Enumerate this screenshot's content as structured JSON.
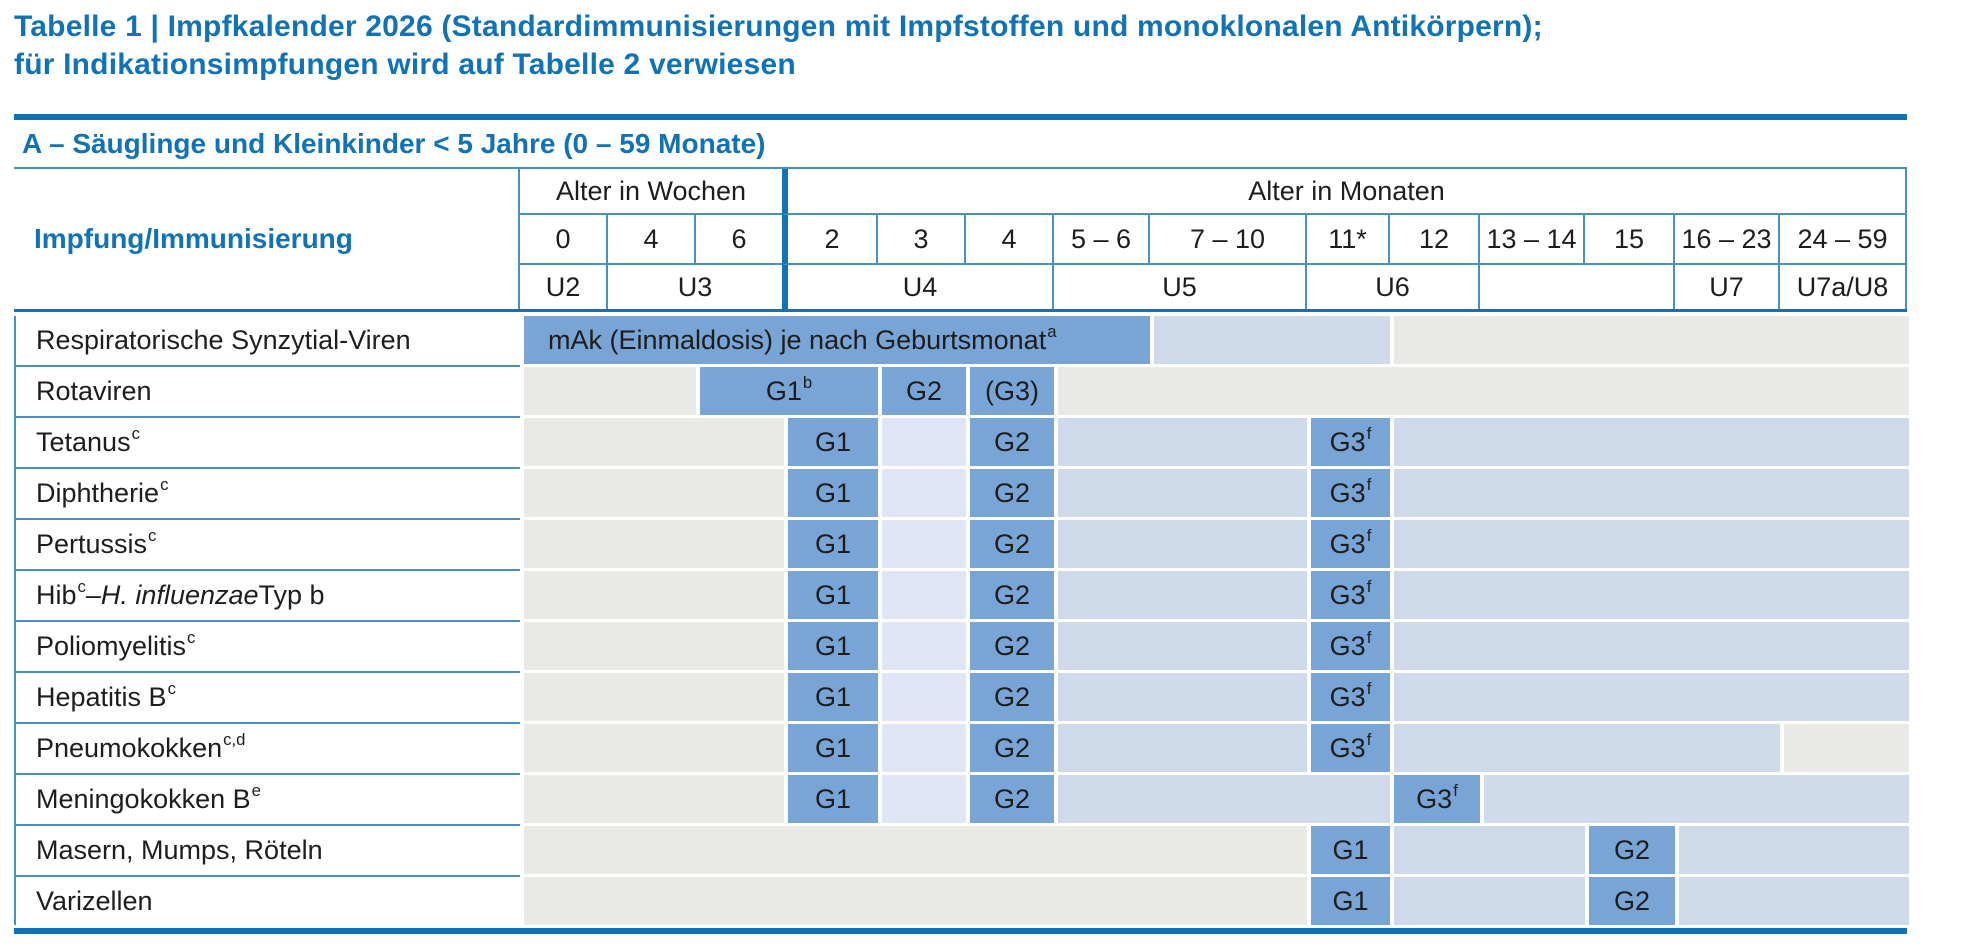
{
  "title": {
    "line1": "Tabelle 1 | Impfkalender 2026 (Standardimmunisierungen mit Impfstoffen und monoklonalen Antikörpern);",
    "line2": "für Indikationsimpfungen wird auf Tabelle 2 verwiesen"
  },
  "section": {
    "label": "A – Säuglinge und Kleinkinder < 5 Jahre (0 – 59 Monate)"
  },
  "header": {
    "impfung_label": "Impfung/Immunisierung",
    "weeks_label": "Alter in Wochen",
    "months_label": "Alter in Monaten",
    "week_columns": [
      "0",
      "4",
      "6"
    ],
    "month_columns": [
      "2",
      "3",
      "4",
      "5 – 6",
      "7 – 10",
      "11*",
      "12",
      "13 – 14",
      "15",
      "16 – 23",
      "24 – 59"
    ],
    "u_row": [
      "U2",
      "U3",
      "U4",
      "U5",
      "U6",
      "",
      "U7",
      "U7a/U8"
    ]
  },
  "colors": {
    "accent_blue": "#1173b6",
    "grid_line_blue": "#4a8ec2",
    "dose_cell_blue": "#79a4d6",
    "range_light_lavender": "#dfe5f4",
    "range_periwinkle": "#cfdaeb",
    "inactive_gray": "#e9e9e6"
  },
  "schedule": {
    "rows": [
      {
        "label_parts": [
          {
            "t": "Respiratorische Synzytial-Viren"
          }
        ],
        "cells": [
          {
            "start": "w0",
            "end": "m7_10",
            "color": "blue",
            "align": "left",
            "parts": [
              {
                "t": "mAk (Einmaldosis) je nach Geburtsmonat"
              },
              {
                "sup": "a"
              }
            ]
          },
          {
            "start": "m7_10",
            "end": "m12",
            "color": "periwinkle"
          },
          {
            "start": "m12",
            "end": "end",
            "color": "gray"
          }
        ]
      },
      {
        "label_parts": [
          {
            "t": "Rotaviren"
          }
        ],
        "cells": [
          {
            "start": "w0",
            "end": "w6",
            "color": "gray"
          },
          {
            "start": "w6",
            "end": "m3",
            "color": "blue",
            "parts": [
              {
                "t": "G1"
              },
              {
                "sup": "b"
              }
            ]
          },
          {
            "start": "m3",
            "end": "m4",
            "color": "blue",
            "parts": [
              {
                "t": "G2"
              }
            ]
          },
          {
            "start": "m4",
            "end": "m5_6",
            "color": "blue",
            "parts": [
              {
                "t": "(G3)"
              }
            ]
          },
          {
            "start": "m5_6",
            "end": "end",
            "color": "gray"
          }
        ]
      },
      {
        "label_parts": [
          {
            "t": "Tetanus"
          },
          {
            "sup": "c"
          }
        ],
        "cells": [
          {
            "start": "w0",
            "end": "m2",
            "color": "gray"
          },
          {
            "start": "m2",
            "end": "m3",
            "color": "blue",
            "parts": [
              {
                "t": "G1"
              }
            ]
          },
          {
            "start": "m3",
            "end": "m4",
            "color": "lavender"
          },
          {
            "start": "m4",
            "end": "m5_6",
            "color": "blue",
            "parts": [
              {
                "t": "G2"
              }
            ]
          },
          {
            "start": "m5_6",
            "end": "m11",
            "color": "periwinkle"
          },
          {
            "start": "m11",
            "end": "m12",
            "color": "blue",
            "parts": [
              {
                "t": "G3"
              },
              {
                "sup": "f"
              }
            ]
          },
          {
            "start": "m12",
            "end": "end",
            "color": "periwinkle"
          }
        ]
      },
      {
        "label_parts": [
          {
            "t": "Diphtherie"
          },
          {
            "sup": "c"
          }
        ],
        "cells": [
          {
            "start": "w0",
            "end": "m2",
            "color": "gray"
          },
          {
            "start": "m2",
            "end": "m3",
            "color": "blue",
            "parts": [
              {
                "t": "G1"
              }
            ]
          },
          {
            "start": "m3",
            "end": "m4",
            "color": "lavender"
          },
          {
            "start": "m4",
            "end": "m5_6",
            "color": "blue",
            "parts": [
              {
                "t": "G2"
              }
            ]
          },
          {
            "start": "m5_6",
            "end": "m11",
            "color": "periwinkle"
          },
          {
            "start": "m11",
            "end": "m12",
            "color": "blue",
            "parts": [
              {
                "t": "G3"
              },
              {
                "sup": "f"
              }
            ]
          },
          {
            "start": "m12",
            "end": "end",
            "color": "periwinkle"
          }
        ]
      },
      {
        "label_parts": [
          {
            "t": "Pertussis"
          },
          {
            "sup": "c"
          }
        ],
        "cells": [
          {
            "start": "w0",
            "end": "m2",
            "color": "gray"
          },
          {
            "start": "m2",
            "end": "m3",
            "color": "blue",
            "parts": [
              {
                "t": "G1"
              }
            ]
          },
          {
            "start": "m3",
            "end": "m4",
            "color": "lavender"
          },
          {
            "start": "m4",
            "end": "m5_6",
            "color": "blue",
            "parts": [
              {
                "t": "G2"
              }
            ]
          },
          {
            "start": "m5_6",
            "end": "m11",
            "color": "periwinkle"
          },
          {
            "start": "m11",
            "end": "m12",
            "color": "blue",
            "parts": [
              {
                "t": "G3"
              },
              {
                "sup": "f"
              }
            ]
          },
          {
            "start": "m12",
            "end": "end",
            "color": "periwinkle"
          }
        ]
      },
      {
        "label_parts": [
          {
            "t": "Hib"
          },
          {
            "sup": "c"
          },
          {
            "t": " – "
          },
          {
            "t": "H. influenzae",
            "italic": true
          },
          {
            "t": " Typ b"
          }
        ],
        "cells": [
          {
            "start": "w0",
            "end": "m2",
            "color": "gray"
          },
          {
            "start": "m2",
            "end": "m3",
            "color": "blue",
            "parts": [
              {
                "t": "G1"
              }
            ]
          },
          {
            "start": "m3",
            "end": "m4",
            "color": "lavender"
          },
          {
            "start": "m4",
            "end": "m5_6",
            "color": "blue",
            "parts": [
              {
                "t": "G2"
              }
            ]
          },
          {
            "start": "m5_6",
            "end": "m11",
            "color": "periwinkle"
          },
          {
            "start": "m11",
            "end": "m12",
            "color": "blue",
            "parts": [
              {
                "t": "G3"
              },
              {
                "sup": "f"
              }
            ]
          },
          {
            "start": "m12",
            "end": "end",
            "color": "periwinkle"
          }
        ]
      },
      {
        "label_parts": [
          {
            "t": "Poliomyelitis"
          },
          {
            "sup": "c"
          }
        ],
        "cells": [
          {
            "start": "w0",
            "end": "m2",
            "color": "gray"
          },
          {
            "start": "m2",
            "end": "m3",
            "color": "blue",
            "parts": [
              {
                "t": "G1"
              }
            ]
          },
          {
            "start": "m3",
            "end": "m4",
            "color": "lavender"
          },
          {
            "start": "m4",
            "end": "m5_6",
            "color": "blue",
            "parts": [
              {
                "t": "G2"
              }
            ]
          },
          {
            "start": "m5_6",
            "end": "m11",
            "color": "periwinkle"
          },
          {
            "start": "m11",
            "end": "m12",
            "color": "blue",
            "parts": [
              {
                "t": "G3"
              },
              {
                "sup": "f"
              }
            ]
          },
          {
            "start": "m12",
            "end": "end",
            "color": "periwinkle"
          }
        ]
      },
      {
        "label_parts": [
          {
            "t": "Hepatitis B"
          },
          {
            "sup": "c"
          }
        ],
        "cells": [
          {
            "start": "w0",
            "end": "m2",
            "color": "gray"
          },
          {
            "start": "m2",
            "end": "m3",
            "color": "blue",
            "parts": [
              {
                "t": "G1"
              }
            ]
          },
          {
            "start": "m3",
            "end": "m4",
            "color": "lavender"
          },
          {
            "start": "m4",
            "end": "m5_6",
            "color": "blue",
            "parts": [
              {
                "t": "G2"
              }
            ]
          },
          {
            "start": "m5_6",
            "end": "m11",
            "color": "periwinkle"
          },
          {
            "start": "m11",
            "end": "m12",
            "color": "blue",
            "parts": [
              {
                "t": "G3"
              },
              {
                "sup": "f"
              }
            ]
          },
          {
            "start": "m12",
            "end": "end",
            "color": "periwinkle"
          }
        ]
      },
      {
        "label_parts": [
          {
            "t": "Pneumokokken"
          },
          {
            "sup": "c,d"
          }
        ],
        "cells": [
          {
            "start": "w0",
            "end": "m2",
            "color": "gray"
          },
          {
            "start": "m2",
            "end": "m3",
            "color": "blue",
            "parts": [
              {
                "t": "G1"
              }
            ]
          },
          {
            "start": "m3",
            "end": "m4",
            "color": "lavender"
          },
          {
            "start": "m4",
            "end": "m5_6",
            "color": "blue",
            "parts": [
              {
                "t": "G2"
              }
            ]
          },
          {
            "start": "m5_6",
            "end": "m11",
            "color": "periwinkle"
          },
          {
            "start": "m11",
            "end": "m12",
            "color": "blue",
            "parts": [
              {
                "t": "G3"
              },
              {
                "sup": "f"
              }
            ]
          },
          {
            "start": "m12",
            "end": "m24_59",
            "color": "periwinkle"
          },
          {
            "start": "m24_59",
            "end": "end",
            "color": "gray"
          }
        ]
      },
      {
        "label_parts": [
          {
            "t": "Meningokokken B"
          },
          {
            "sup": "e"
          }
        ],
        "cells": [
          {
            "start": "w0",
            "end": "m2",
            "color": "gray"
          },
          {
            "start": "m2",
            "end": "m3",
            "color": "blue",
            "parts": [
              {
                "t": "G1"
              }
            ]
          },
          {
            "start": "m3",
            "end": "m4",
            "color": "lavender"
          },
          {
            "start": "m4",
            "end": "m5_6",
            "color": "blue",
            "parts": [
              {
                "t": "G2"
              }
            ]
          },
          {
            "start": "m5_6",
            "end": "m12",
            "color": "periwinkle"
          },
          {
            "start": "m12",
            "end": "m13_14",
            "color": "blue",
            "parts": [
              {
                "t": "G3"
              },
              {
                "sup": "f"
              }
            ]
          },
          {
            "start": "m13_14",
            "end": "end",
            "color": "periwinkle"
          }
        ]
      },
      {
        "label_parts": [
          {
            "t": "Masern, Mumps, Röteln"
          }
        ],
        "cells": [
          {
            "start": "w0",
            "end": "m11",
            "color": "gray"
          },
          {
            "start": "m11",
            "end": "m12",
            "color": "blue",
            "parts": [
              {
                "t": "G1"
              }
            ]
          },
          {
            "start": "m12",
            "end": "m15",
            "color": "periwinkle"
          },
          {
            "start": "m15",
            "end": "m16_23",
            "color": "blue",
            "parts": [
              {
                "t": "G2"
              }
            ]
          },
          {
            "start": "m16_23",
            "end": "end",
            "color": "periwinkle"
          }
        ]
      },
      {
        "label_parts": [
          {
            "t": "Varizellen"
          }
        ],
        "cells": [
          {
            "start": "w0",
            "end": "m11",
            "color": "gray"
          },
          {
            "start": "m11",
            "end": "m12",
            "color": "blue",
            "parts": [
              {
                "t": "G1"
              }
            ]
          },
          {
            "start": "m12",
            "end": "m15",
            "color": "periwinkle"
          },
          {
            "start": "m15",
            "end": "m16_23",
            "color": "blue",
            "parts": [
              {
                "t": "G2"
              }
            ]
          },
          {
            "start": "m16_23",
            "end": "end",
            "color": "periwinkle"
          }
        ]
      }
    ]
  }
}
